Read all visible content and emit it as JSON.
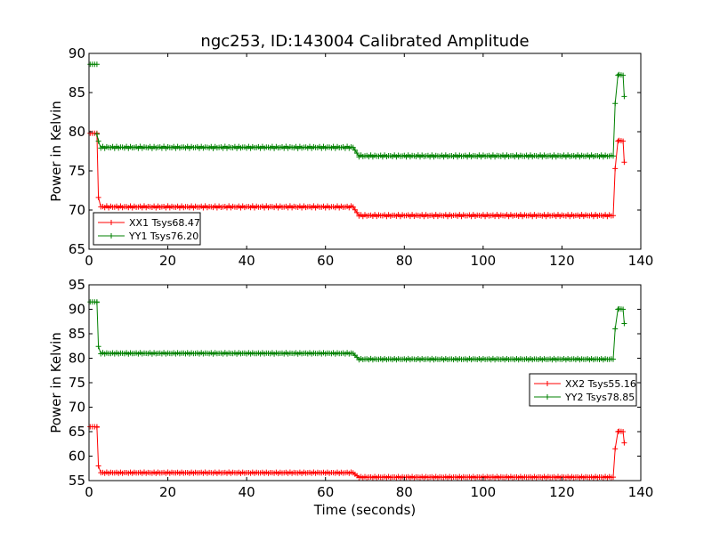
{
  "figure_title": "ngc253, ID:143004 Calibrated Amplitude",
  "colors": {
    "red": "#ff0000",
    "green": "#008000"
  },
  "chart_data": [
    {
      "type": "line",
      "title": "ngc253, ID:143004 Calibrated Amplitude",
      "xlabel": "",
      "ylabel": "Power in Kelvin",
      "xlim": [
        0,
        140
      ],
      "ylim": [
        65,
        90
      ],
      "xticks": [
        "0",
        "20",
        "40",
        "60",
        "80",
        "100",
        "120",
        "140"
      ],
      "yticks": [
        "65",
        "70",
        "75",
        "80",
        "85",
        "90"
      ],
      "grid": false,
      "legend_position": "lower-left",
      "series": [
        {
          "name": "XX1 Tsys68.47",
          "color": "#ff0000",
          "segments": [
            {
              "x": [
                0.3,
                2.0
              ],
              "y": [
                79.8,
                79.8
              ]
            },
            {
              "x": [
                2.0,
                2.4,
                3.0,
                67.0,
                68.5,
                133.0,
                133.5,
                134.2,
                134.5,
                135.5,
                135.8
              ],
              "y": [
                79.7,
                71.6,
                70.4,
                70.4,
                69.3,
                69.3,
                75.3,
                78.8,
                78.9,
                78.8,
                76.1
              ]
            }
          ]
        },
        {
          "name": "YY1 Tsys76.20",
          "color": "#008000",
          "segments": [
            {
              "x": [
                0.3,
                2.0
              ],
              "y": [
                88.6,
                88.6
              ]
            },
            {
              "x": [
                2.0,
                2.4,
                3.0,
                67.0,
                68.5,
                133.0,
                133.5,
                134.2,
                134.5,
                135.5,
                135.8
              ],
              "y": [
                79.7,
                78.8,
                78.0,
                78.0,
                76.9,
                76.9,
                83.6,
                87.2,
                87.3,
                87.2,
                84.5
              ]
            }
          ]
        }
      ]
    },
    {
      "type": "line",
      "title": "",
      "xlabel": "Time (seconds)",
      "ylabel": "Power in Kelvin",
      "xlim": [
        0,
        140
      ],
      "ylim": [
        55,
        95
      ],
      "xticks": [
        "0",
        "20",
        "40",
        "60",
        "80",
        "100",
        "120",
        "140"
      ],
      "yticks": [
        "55",
        "60",
        "65",
        "70",
        "75",
        "80",
        "85",
        "90",
        "95"
      ],
      "grid": false,
      "legend_position": "center-right",
      "series": [
        {
          "name": "XX2 Tsys55.16",
          "color": "#ff0000",
          "segments": [
            {
              "x": [
                0.3,
                2.0
              ],
              "y": [
                66.0,
                66.0
              ]
            },
            {
              "x": [
                2.0,
                2.4,
                3.0,
                67.0,
                68.5,
                133.0,
                133.5,
                134.2,
                134.5,
                135.5,
                135.8
              ],
              "y": [
                65.9,
                58.0,
                56.6,
                56.6,
                55.7,
                55.7,
                61.5,
                65.0,
                65.1,
                65.0,
                62.7
              ]
            }
          ]
        },
        {
          "name": "YY2 Tsys78.85",
          "color": "#008000",
          "segments": [
            {
              "x": [
                0.3,
                2.0
              ],
              "y": [
                91.5,
                91.5
              ]
            },
            {
              "x": [
                2.0,
                2.4,
                3.0,
                67.0,
                68.5,
                133.0,
                133.5,
                134.2,
                134.5,
                135.5,
                135.8
              ],
              "y": [
                91.4,
                82.4,
                81.0,
                81.0,
                79.8,
                79.8,
                86.0,
                90.0,
                90.1,
                90.0,
                87.1
              ]
            }
          ]
        }
      ]
    }
  ]
}
